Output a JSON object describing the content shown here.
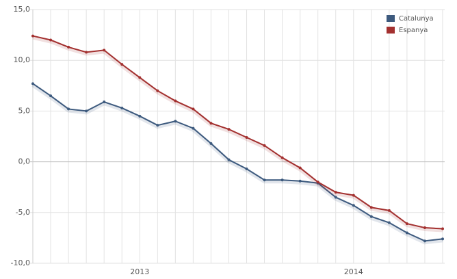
{
  "chart_data": {
    "type": "line",
    "categories": [
      null,
      null,
      null,
      null,
      null,
      null,
      "2013",
      null,
      null,
      null,
      null,
      null,
      null,
      null,
      null,
      null,
      null,
      null,
      "2014",
      null,
      null,
      null,
      null,
      null
    ],
    "series": [
      {
        "name": "Catalunya",
        "color": "#3d5a7e",
        "values": [
          7.7,
          6.5,
          5.2,
          5.0,
          5.9,
          5.3,
          4.5,
          3.6,
          4.0,
          3.3,
          1.8,
          0.2,
          -0.7,
          -1.8,
          -1.8,
          -1.9,
          -2.1,
          -3.5,
          -4.3,
          -5.4,
          -6.0,
          -7.0,
          -7.8,
          -7.6
        ]
      },
      {
        "name": "Espanya",
        "color": "#a3302f",
        "values": [
          12.4,
          12.0,
          11.3,
          10.8,
          11.0,
          9.6,
          8.3,
          7.0,
          6.0,
          5.2,
          3.8,
          3.2,
          2.4,
          1.6,
          0.4,
          -0.6,
          -2.0,
          -3.0,
          -3.3,
          -4.5,
          -4.8,
          -6.1,
          -6.5,
          -6.6
        ]
      }
    ],
    "ylim": [
      -10,
      15
    ],
    "yticks": [
      {
        "value": -10,
        "label": "-10,0"
      },
      {
        "value": -5,
        "label": "-5,0"
      },
      {
        "value": 0,
        "label": "0,0"
      },
      {
        "value": 5,
        "label": "5,0"
      },
      {
        "value": 10,
        "label": "10,0"
      },
      {
        "value": 15,
        "label": "15,0"
      }
    ],
    "grid": true,
    "legend": "top-right"
  }
}
